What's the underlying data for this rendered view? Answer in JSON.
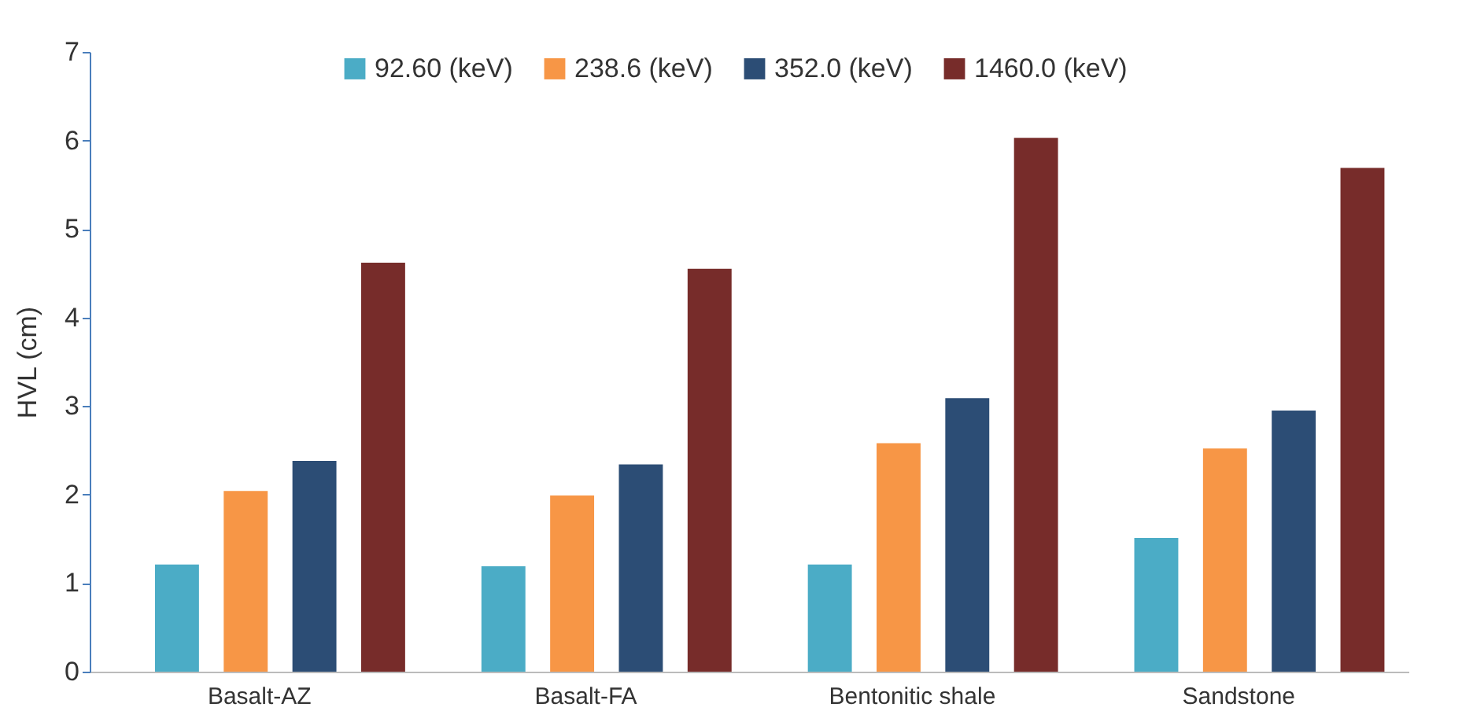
{
  "chart_data": {
    "type": "bar",
    "ylabel": "HVL (cm)",
    "categories": [
      "Basalt-AZ",
      "Basalt-FA",
      "Bentonitic  shale",
      "Sandstone"
    ],
    "series": [
      {
        "name": "92.60 (keV)",
        "color": "#4bacc6",
        "values": [
          1.21,
          1.19,
          1.21,
          1.51
        ]
      },
      {
        "name": "238.6 (keV)",
        "color": "#f79646",
        "values": [
          2.04,
          1.99,
          2.58,
          2.52
        ]
      },
      {
        "name": "352.0 (keV)",
        "color": "#2c4d75",
        "values": [
          2.38,
          2.34,
          3.09,
          2.95
        ]
      },
      {
        "name": "1460.0 (keV)",
        "color": "#772c2a",
        "values": [
          4.62,
          4.55,
          6.03,
          5.69
        ]
      }
    ],
    "ylim": [
      0,
      7
    ],
    "yticks": [
      0,
      1,
      2,
      3,
      4,
      5,
      6,
      7
    ],
    "grid": false,
    "legend": "top"
  }
}
